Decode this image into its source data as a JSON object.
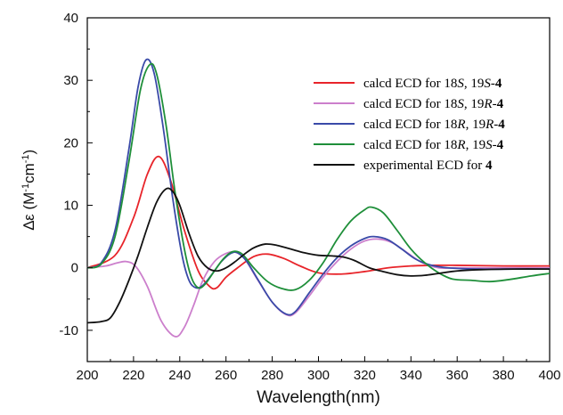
{
  "chart_data": {
    "type": "line",
    "xlabel": "Wavelength(nm)",
    "ylabel_prefix": "∆ε (M",
    "ylabel_sup1": "-1",
    "ylabel_mid": "cm",
    "ylabel_sup2": "-1",
    "ylabel_suffix": ")",
    "xlim": [
      200,
      400
    ],
    "ylim": [
      -15,
      40
    ],
    "xticks": [
      200,
      220,
      240,
      260,
      280,
      300,
      320,
      340,
      360,
      380,
      400
    ],
    "yticks": [
      -10,
      0,
      10,
      20,
      30,
      40
    ],
    "legend_position": "top-right",
    "grid": false,
    "series": [
      {
        "legend_parts": [
          {
            "t": "calcd ECD for 18",
            "s": "normal"
          },
          {
            "t": "S",
            "s": "italic"
          },
          {
            "t": ", 19",
            "s": "normal"
          },
          {
            "t": "S",
            "s": "italic"
          },
          {
            "t": "-",
            "s": "normal"
          },
          {
            "t": "4",
            "s": "bold"
          }
        ],
        "color": "#e8242a",
        "points": [
          [
            200,
            0
          ],
          [
            212,
            2
          ],
          [
            220,
            8
          ],
          [
            226,
            15
          ],
          [
            231,
            17.8
          ],
          [
            236,
            14
          ],
          [
            242,
            6
          ],
          [
            248,
            -0.5
          ],
          [
            253,
            -3
          ],
          [
            256,
            -3.2
          ],
          [
            260,
            -1.5
          ],
          [
            265,
            0
          ],
          [
            272,
            1.8
          ],
          [
            278,
            2.2
          ],
          [
            285,
            1.5
          ],
          [
            292,
            0.3
          ],
          [
            300,
            -0.8
          ],
          [
            310,
            -1
          ],
          [
            320,
            -0.6
          ],
          [
            330,
            0
          ],
          [
            340,
            0.3
          ],
          [
            350,
            0.4
          ],
          [
            360,
            0.4
          ],
          [
            380,
            0.3
          ],
          [
            400,
            0.3
          ]
        ]
      },
      {
        "legend_parts": [
          {
            "t": "calcd ECD for 18",
            "s": "normal"
          },
          {
            "t": "S",
            "s": "italic"
          },
          {
            "t": ", 19",
            "s": "normal"
          },
          {
            "t": "R",
            "s": "italic"
          },
          {
            "t": "-",
            "s": "normal"
          },
          {
            "t": "4",
            "s": "bold"
          }
        ],
        "color": "#cc7fcc",
        "points": [
          [
            200,
            0
          ],
          [
            208,
            0.3
          ],
          [
            213,
            0.8
          ],
          [
            217,
            1
          ],
          [
            221,
            0.2
          ],
          [
            226,
            -3
          ],
          [
            232,
            -8.5
          ],
          [
            238,
            -11
          ],
          [
            242,
            -9.5
          ],
          [
            246,
            -6
          ],
          [
            250,
            -2
          ],
          [
            255,
            1
          ],
          [
            260,
            2.3
          ],
          [
            264,
            2.5
          ],
          [
            268,
            1.5
          ],
          [
            273,
            -1.5
          ],
          [
            280,
            -5.5
          ],
          [
            286,
            -7.5
          ],
          [
            290,
            -7.2
          ],
          [
            296,
            -4.5
          ],
          [
            302,
            -1.5
          ],
          [
            308,
            1
          ],
          [
            314,
            3
          ],
          [
            320,
            4.3
          ],
          [
            326,
            4.6
          ],
          [
            332,
            4
          ],
          [
            338,
            2.5
          ],
          [
            345,
            0.8
          ],
          [
            352,
            0
          ],
          [
            360,
            0
          ],
          [
            380,
            0
          ],
          [
            400,
            0
          ]
        ]
      },
      {
        "legend_parts": [
          {
            "t": "calcd ECD for 18",
            "s": "normal"
          },
          {
            "t": "R",
            "s": "italic"
          },
          {
            "t": ", 19",
            "s": "normal"
          },
          {
            "t": "R",
            "s": "italic"
          },
          {
            "t": "-",
            "s": "normal"
          },
          {
            "t": "4",
            "s": "bold"
          }
        ],
        "color": "#3a4aa8",
        "points": [
          [
            200,
            0
          ],
          [
            206,
            0.8
          ],
          [
            212,
            6
          ],
          [
            218,
            19
          ],
          [
            222,
            29
          ],
          [
            225.5,
            33.3
          ],
          [
            229,
            31
          ],
          [
            233,
            22
          ],
          [
            237,
            11
          ],
          [
            241,
            2
          ],
          [
            244,
            -2
          ],
          [
            247,
            -3.2
          ],
          [
            250,
            -2.8
          ],
          [
            254,
            -1
          ],
          [
            258,
            1
          ],
          [
            262,
            2.3
          ],
          [
            265,
            2.4
          ],
          [
            269,
            1
          ],
          [
            274,
            -2
          ],
          [
            280,
            -5.5
          ],
          [
            286,
            -7.4
          ],
          [
            290,
            -7
          ],
          [
            296,
            -4
          ],
          [
            302,
            -1
          ],
          [
            308,
            1.6
          ],
          [
            314,
            3.5
          ],
          [
            320,
            4.7
          ],
          [
            324,
            5
          ],
          [
            330,
            4.5
          ],
          [
            336,
            3
          ],
          [
            342,
            1.4
          ],
          [
            348,
            0.5
          ],
          [
            356,
            0
          ],
          [
            370,
            -0.2
          ],
          [
            385,
            -0.2
          ],
          [
            400,
            -0.2
          ]
        ]
      },
      {
        "legend_parts": [
          {
            "t": "calcd ECD for 18",
            "s": "normal"
          },
          {
            "t": "R",
            "s": "italic"
          },
          {
            "t": ", 19",
            "s": "normal"
          },
          {
            "t": "S",
            "s": "italic"
          },
          {
            "t": "-",
            "s": "normal"
          },
          {
            "t": "4",
            "s": "bold"
          }
        ],
        "color": "#1f8f3a",
        "points": [
          [
            200,
            0
          ],
          [
            206,
            0.6
          ],
          [
            212,
            5
          ],
          [
            218,
            17
          ],
          [
            223,
            28.5
          ],
          [
            227,
            32.5
          ],
          [
            230,
            31
          ],
          [
            234,
            23
          ],
          [
            238,
            12
          ],
          [
            242,
            3
          ],
          [
            245,
            -1.5
          ],
          [
            248,
            -3.2
          ],
          [
            251,
            -2.6
          ],
          [
            255,
            -0.5
          ],
          [
            259,
            1.5
          ],
          [
            263,
            2.6
          ],
          [
            267,
            2.2
          ],
          [
            272,
            0
          ],
          [
            278,
            -2.2
          ],
          [
            284,
            -3.3
          ],
          [
            290,
            -3.5
          ],
          [
            296,
            -2
          ],
          [
            302,
            0.8
          ],
          [
            308,
            4.5
          ],
          [
            314,
            7.5
          ],
          [
            320,
            9.3
          ],
          [
            323,
            9.7
          ],
          [
            328,
            8.8
          ],
          [
            334,
            6
          ],
          [
            340,
            3
          ],
          [
            346,
            0.8
          ],
          [
            352,
            -0.8
          ],
          [
            358,
            -1.8
          ],
          [
            366,
            -2
          ],
          [
            374,
            -2.2
          ],
          [
            382,
            -1.9
          ],
          [
            392,
            -1.3
          ],
          [
            400,
            -0.9
          ]
        ]
      },
      {
        "legend_parts": [
          {
            "t": "experimental ECD for ",
            "s": "normal"
          },
          {
            "t": "4",
            "s": "bold"
          }
        ],
        "color": "#111111",
        "points": [
          [
            200,
            -8.8
          ],
          [
            206,
            -8.6
          ],
          [
            210,
            -8
          ],
          [
            214,
            -5.5
          ],
          [
            218,
            -2
          ],
          [
            222,
            2
          ],
          [
            226,
            6.5
          ],
          [
            230,
            10.5
          ],
          [
            234,
            12.6
          ],
          [
            237,
            12.2
          ],
          [
            240,
            10
          ],
          [
            244,
            5.5
          ],
          [
            248,
            1.8
          ],
          [
            252,
            0
          ],
          [
            256,
            -0.5
          ],
          [
            260,
            0
          ],
          [
            264,
            1
          ],
          [
            268,
            2.2
          ],
          [
            272,
            3.2
          ],
          [
            277,
            3.8
          ],
          [
            282,
            3.6
          ],
          [
            288,
            3
          ],
          [
            294,
            2.4
          ],
          [
            300,
            2
          ],
          [
            306,
            1.9
          ],
          [
            311,
            1.7
          ],
          [
            316,
            1.1
          ],
          [
            322,
            0
          ],
          [
            328,
            -0.6
          ],
          [
            334,
            -1.1
          ],
          [
            340,
            -1.3
          ],
          [
            346,
            -1.2
          ],
          [
            352,
            -0.9
          ],
          [
            360,
            -0.5
          ],
          [
            370,
            -0.3
          ],
          [
            385,
            -0.2
          ],
          [
            400,
            -0.2
          ]
        ]
      }
    ]
  }
}
